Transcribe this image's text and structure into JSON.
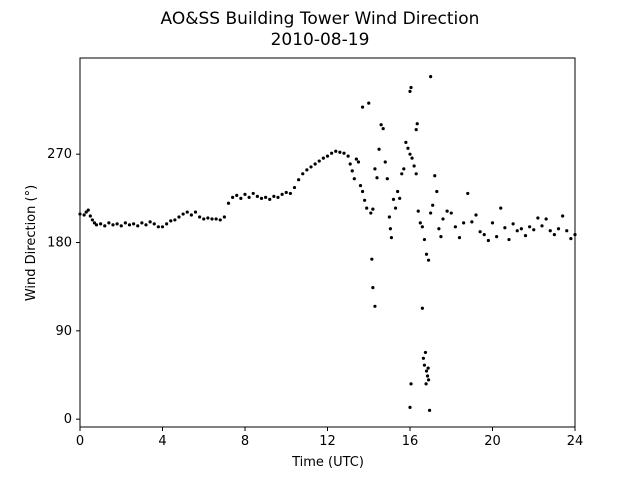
{
  "chart_data": {
    "type": "scatter",
    "title": "AO&SS Building Tower Wind Direction",
    "subtitle": "2010-08-19",
    "xlabel": "Time (UTC)",
    "ylabel": "Wind Direction (°)",
    "xlim": [
      0,
      24
    ],
    "ylim": [
      -8,
      368
    ],
    "xticks": [
      0,
      4,
      8,
      12,
      16,
      20,
      24
    ],
    "xtick_labels": [
      "0",
      "4",
      "8",
      "12",
      "16",
      "20",
      "24"
    ],
    "yticks": [
      0,
      90,
      180,
      270
    ],
    "ytick_labels": [
      "0",
      "90",
      "180",
      "270"
    ],
    "grid": false,
    "marker_color": "#000000",
    "series": [
      {
        "points": [
          [
            0.0,
            209
          ],
          [
            0.2,
            208
          ],
          [
            0.3,
            211
          ],
          [
            0.4,
            213
          ],
          [
            0.5,
            207
          ],
          [
            0.6,
            203
          ],
          [
            0.7,
            200
          ],
          [
            0.8,
            198
          ],
          [
            1.0,
            199
          ],
          [
            1.2,
            197
          ],
          [
            1.4,
            200
          ],
          [
            1.6,
            198
          ],
          [
            1.8,
            199
          ],
          [
            2.0,
            197
          ],
          [
            2.2,
            200
          ],
          [
            2.4,
            198
          ],
          [
            2.6,
            199
          ],
          [
            2.8,
            197
          ],
          [
            3.0,
            200
          ],
          [
            3.2,
            198
          ],
          [
            3.4,
            201
          ],
          [
            3.6,
            199
          ],
          [
            3.8,
            196
          ],
          [
            4.0,
            196
          ],
          [
            4.2,
            199
          ],
          [
            4.4,
            202
          ],
          [
            4.6,
            203
          ],
          [
            4.8,
            206
          ],
          [
            5.0,
            209
          ],
          [
            5.2,
            211
          ],
          [
            5.4,
            208
          ],
          [
            5.6,
            211
          ],
          [
            5.8,
            206
          ],
          [
            6.0,
            204
          ],
          [
            6.2,
            205
          ],
          [
            6.4,
            204
          ],
          [
            6.6,
            204
          ],
          [
            6.8,
            203
          ],
          [
            7.0,
            206
          ],
          [
            7.2,
            220
          ],
          [
            7.4,
            226
          ],
          [
            7.6,
            228
          ],
          [
            7.8,
            225
          ],
          [
            8.0,
            229
          ],
          [
            8.2,
            226
          ],
          [
            8.4,
            230
          ],
          [
            8.6,
            227
          ],
          [
            8.8,
            225
          ],
          [
            9.0,
            226
          ],
          [
            9.2,
            224
          ],
          [
            9.4,
            227
          ],
          [
            9.6,
            226
          ],
          [
            9.8,
            229
          ],
          [
            10.0,
            231
          ],
          [
            10.2,
            230
          ],
          [
            10.4,
            236
          ],
          [
            10.6,
            244
          ],
          [
            10.8,
            250
          ],
          [
            11.0,
            254
          ],
          [
            11.2,
            257
          ],
          [
            11.4,
            260
          ],
          [
            11.6,
            263
          ],
          [
            11.8,
            266
          ],
          [
            12.0,
            268
          ],
          [
            12.2,
            271
          ],
          [
            12.4,
            273
          ],
          [
            12.6,
            272
          ],
          [
            12.8,
            271
          ],
          [
            13.0,
            268
          ],
          [
            13.1,
            260
          ],
          [
            13.2,
            253
          ],
          [
            13.3,
            245
          ],
          [
            13.4,
            265
          ],
          [
            13.5,
            262
          ],
          [
            13.6,
            238
          ],
          [
            13.7,
            232
          ],
          [
            13.8,
            223
          ],
          [
            13.9,
            215
          ],
          [
            14.0,
            322
          ],
          [
            14.1,
            210
          ],
          [
            14.2,
            214
          ],
          [
            14.3,
            255
          ],
          [
            14.4,
            246
          ],
          [
            14.5,
            275
          ],
          [
            14.6,
            300
          ],
          [
            14.7,
            296
          ],
          [
            14.8,
            262
          ],
          [
            14.9,
            245
          ],
          [
            15.0,
            206
          ],
          [
            15.05,
            194
          ],
          [
            15.1,
            185
          ],
          [
            15.2,
            224
          ],
          [
            15.3,
            215
          ],
          [
            15.4,
            232
          ],
          [
            15.5,
            225
          ],
          [
            15.6,
            250
          ],
          [
            15.7,
            255
          ],
          [
            15.8,
            282
          ],
          [
            15.9,
            276
          ],
          [
            16.0,
            270
          ],
          [
            16.1,
            266
          ],
          [
            16.2,
            258
          ],
          [
            16.3,
            250
          ],
          [
            16.4,
            212
          ],
          [
            16.5,
            200
          ],
          [
            16.6,
            196
          ],
          [
            16.7,
            183
          ],
          [
            16.8,
            168
          ],
          [
            16.9,
            162
          ],
          [
            17.0,
            210
          ],
          [
            17.1,
            218
          ],
          [
            17.2,
            248
          ],
          [
            17.3,
            232
          ],
          [
            17.4,
            194
          ],
          [
            17.5,
            186
          ],
          [
            17.6,
            204
          ],
          [
            17.8,
            212
          ],
          [
            18.0,
            210
          ],
          [
            18.2,
            196
          ],
          [
            18.4,
            185
          ],
          [
            18.6,
            200
          ],
          [
            18.8,
            230
          ],
          [
            19.0,
            201
          ],
          [
            19.2,
            208
          ],
          [
            19.4,
            191
          ],
          [
            19.6,
            188
          ],
          [
            19.8,
            182
          ],
          [
            20.0,
            200
          ],
          [
            20.2,
            186
          ],
          [
            20.4,
            215
          ],
          [
            20.6,
            195
          ],
          [
            20.8,
            183
          ],
          [
            21.0,
            199
          ],
          [
            21.2,
            192
          ],
          [
            21.4,
            194
          ],
          [
            21.6,
            187
          ],
          [
            21.8,
            196
          ],
          [
            22.0,
            193
          ],
          [
            22.2,
            205
          ],
          [
            22.4,
            197
          ],
          [
            22.6,
            204
          ],
          [
            22.8,
            192
          ],
          [
            23.0,
            188
          ],
          [
            23.2,
            194
          ],
          [
            23.4,
            207
          ],
          [
            23.6,
            192
          ],
          [
            23.8,
            184
          ],
          [
            24.0,
            188
          ],
          [
            14.2,
            134
          ],
          [
            14.3,
            115
          ],
          [
            14.15,
            163
          ],
          [
            16.3,
            295
          ],
          [
            16.35,
            301
          ],
          [
            16.6,
            113
          ],
          [
            16.7,
            55
          ],
          [
            16.75,
            68
          ],
          [
            16.8,
            49
          ],
          [
            16.85,
            44
          ],
          [
            16.9,
            40
          ],
          [
            16.95,
            9
          ],
          [
            16.0,
            12
          ],
          [
            16.05,
            36
          ],
          [
            16.0,
            334
          ],
          [
            16.05,
            338
          ],
          [
            17.0,
            349
          ],
          [
            13.7,
            318
          ],
          [
            16.65,
            62
          ],
          [
            16.78,
            36
          ],
          [
            16.88,
            52
          ]
        ]
      }
    ]
  }
}
